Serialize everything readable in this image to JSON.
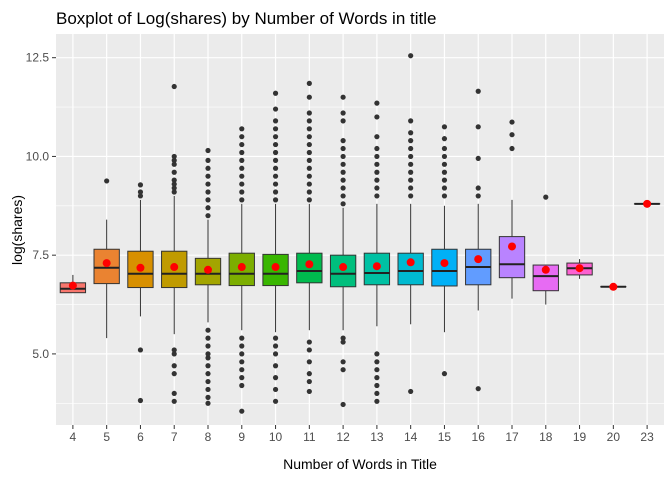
{
  "chart_data": {
    "type": "boxplot",
    "title": "Boxplot of Log(shares) by Number of Words in title",
    "xlabel": "Number of Words in Title",
    "ylabel": "log(shares)",
    "ylim": [
      3.2,
      13.1
    ],
    "yticks": [
      5.0,
      7.5,
      10.0,
      12.5
    ],
    "ytick_labels": [
      "5.0",
      "7.5",
      "10.0",
      "12.5"
    ],
    "grid": true,
    "legend": "none",
    "mean_marker_color": "#ff0000",
    "categories": [
      "4",
      "5",
      "6",
      "7",
      "8",
      "9",
      "10",
      "11",
      "12",
      "13",
      "14",
      "15",
      "16",
      "17",
      "18",
      "19",
      "20",
      "23"
    ],
    "boxes": [
      {
        "category": "4",
        "color": "#f8766d",
        "whisker_low": 6.55,
        "q1": 6.55,
        "median": 6.65,
        "q3": 6.8,
        "whisker_high": 7.0,
        "mean": 6.73,
        "outliers": []
      },
      {
        "category": "5",
        "color": "#ea8331",
        "whisker_low": 5.4,
        "q1": 6.78,
        "median": 7.18,
        "q3": 7.65,
        "whisker_high": 8.4,
        "mean": 7.3,
        "outliers": [
          9.38
        ]
      },
      {
        "category": "6",
        "color": "#d89000",
        "whisker_low": 5.95,
        "q1": 6.68,
        "median": 7.03,
        "q3": 7.6,
        "whisker_high": 8.9,
        "mean": 7.18,
        "outliers": [
          3.82,
          5.1,
          9.0,
          9.1,
          9.28
        ]
      },
      {
        "category": "7",
        "color": "#c09b00",
        "whisker_low": 5.5,
        "q1": 6.68,
        "median": 7.03,
        "q3": 7.6,
        "whisker_high": 9.0,
        "mean": 7.2,
        "outliers": [
          3.8,
          4.0,
          4.5,
          4.7,
          5.0,
          5.1,
          9.1,
          9.2,
          9.3,
          9.4,
          9.6,
          9.8,
          9.9,
          10.0,
          11.77
        ]
      },
      {
        "category": "8",
        "color": "#a3a500",
        "whisker_low": 5.8,
        "q1": 6.75,
        "median": 7.03,
        "q3": 7.42,
        "whisker_high": 8.4,
        "mean": 7.13,
        "outliers": [
          3.75,
          3.9,
          4.1,
          4.3,
          4.5,
          4.7,
          4.9,
          5.0,
          5.2,
          5.4,
          5.6,
          8.5,
          8.7,
          8.9,
          9.1,
          9.3,
          9.5,
          9.7,
          9.9,
          10.15
        ]
      },
      {
        "category": "9",
        "color": "#7cae00",
        "whisker_low": 5.6,
        "q1": 6.73,
        "median": 7.03,
        "q3": 7.55,
        "whisker_high": 8.8,
        "mean": 7.2,
        "outliers": [
          3.55,
          4.2,
          4.4,
          4.6,
          4.8,
          5.0,
          5.2,
          5.4,
          8.9,
          9.1,
          9.3,
          9.5,
          9.7,
          9.9,
          10.1,
          10.3,
          10.5,
          10.7
        ]
      },
      {
        "category": "10",
        "color": "#39b600",
        "whisker_low": 5.55,
        "q1": 6.73,
        "median": 7.03,
        "q3": 7.52,
        "whisker_high": 8.8,
        "mean": 7.2,
        "outliers": [
          3.8,
          4.1,
          4.4,
          4.7,
          5.0,
          5.2,
          5.4,
          8.9,
          9.1,
          9.3,
          9.5,
          9.7,
          9.9,
          10.1,
          10.3,
          10.5,
          10.7,
          10.9,
          11.2,
          11.6
        ]
      },
      {
        "category": "11",
        "color": "#00bb4e",
        "whisker_low": 5.6,
        "q1": 6.8,
        "median": 7.1,
        "q3": 7.55,
        "whisker_high": 8.8,
        "mean": 7.27,
        "outliers": [
          4.05,
          4.3,
          4.5,
          4.8,
          5.1,
          5.3,
          8.9,
          9.1,
          9.3,
          9.5,
          9.7,
          9.9,
          10.1,
          10.3,
          10.5,
          10.7,
          10.9,
          11.1,
          11.5,
          11.85
        ]
      },
      {
        "category": "12",
        "color": "#00bf7d",
        "whisker_low": 5.6,
        "q1": 6.7,
        "median": 7.03,
        "q3": 7.5,
        "whisker_high": 8.7,
        "mean": 7.2,
        "outliers": [
          3.72,
          4.6,
          4.8,
          5.3,
          5.4,
          8.8,
          9.0,
          9.2,
          9.4,
          9.6,
          9.8,
          10.0,
          10.2,
          10.4,
          10.9,
          11.1,
          11.5
        ]
      },
      {
        "category": "13",
        "color": "#00c1a3",
        "whisker_low": 5.7,
        "q1": 6.75,
        "median": 7.05,
        "q3": 7.55,
        "whisker_high": 8.8,
        "mean": 7.22,
        "outliers": [
          3.8,
          4.0,
          4.2,
          4.4,
          4.6,
          4.8,
          5.0,
          9.0,
          9.2,
          9.4,
          9.6,
          9.8,
          10.0,
          10.2,
          10.5,
          11.0,
          11.35
        ]
      },
      {
        "category": "14",
        "color": "#00bad0",
        "whisker_low": 5.75,
        "q1": 6.75,
        "median": 7.1,
        "q3": 7.55,
        "whisker_high": 8.8,
        "mean": 7.32,
        "outliers": [
          4.05,
          9.0,
          9.2,
          9.4,
          9.6,
          9.8,
          10.0,
          10.2,
          10.4,
          10.6,
          10.9,
          12.55
        ]
      },
      {
        "category": "15",
        "color": "#00b0f6",
        "whisker_low": 5.55,
        "q1": 6.72,
        "median": 7.1,
        "q3": 7.65,
        "whisker_high": 8.75,
        "mean": 7.3,
        "outliers": [
          4.5,
          9.0,
          9.2,
          9.4,
          9.6,
          9.8,
          10.0,
          10.2,
          10.45,
          10.75
        ]
      },
      {
        "category": "16",
        "color": "#619cff",
        "whisker_low": 6.1,
        "q1": 6.75,
        "median": 7.2,
        "q3": 7.65,
        "whisker_high": 8.8,
        "mean": 7.4,
        "outliers": [
          4.12,
          9.0,
          9.2,
          9.95,
          10.75,
          11.65
        ]
      },
      {
        "category": "17",
        "color": "#b983ff",
        "whisker_low": 6.4,
        "q1": 6.93,
        "median": 7.27,
        "q3": 7.97,
        "whisker_high": 8.9,
        "mean": 7.72,
        "outliers": [
          10.2,
          10.55,
          10.87
        ]
      },
      {
        "category": "18",
        "color": "#e76bf3",
        "whisker_low": 6.25,
        "q1": 6.6,
        "median": 6.97,
        "q3": 7.25,
        "whisker_high": 7.25,
        "mean": 7.13,
        "outliers": [
          8.97
        ]
      },
      {
        "category": "19",
        "color": "#fd61d1",
        "whisker_low": 6.9,
        "q1": 7.0,
        "median": 7.17,
        "q3": 7.3,
        "whisker_high": 7.4,
        "mean": 7.17,
        "outliers": []
      },
      {
        "category": "20",
        "color": "#ff67a4",
        "whisker_low": 6.7,
        "q1": 6.7,
        "median": 6.7,
        "q3": 6.7,
        "whisker_high": 6.7,
        "mean": 6.7,
        "outliers": []
      },
      {
        "category": "23",
        "color": "#ff6c91",
        "whisker_low": 8.8,
        "q1": 8.8,
        "median": 8.8,
        "q3": 8.8,
        "whisker_high": 8.8,
        "mean": 8.8,
        "outliers": []
      }
    ]
  }
}
